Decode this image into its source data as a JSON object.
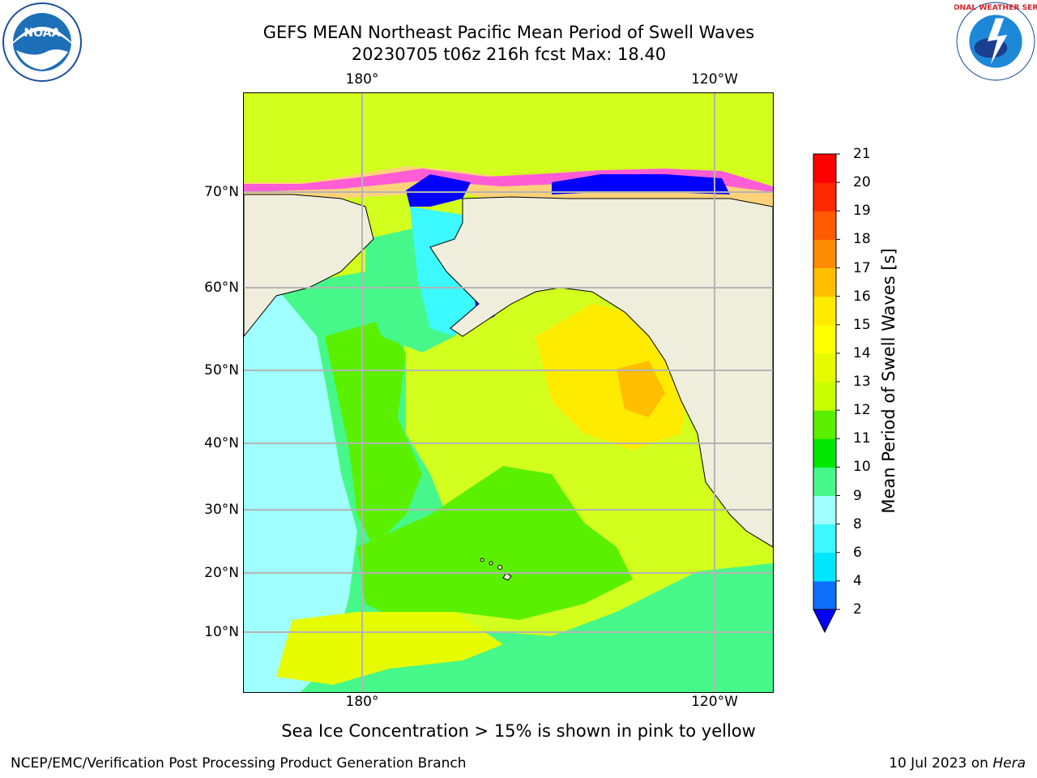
{
  "title_line1": "GEFS MEAN Northeast Pacific Mean Period of Swell Waves",
  "title_line2": "20230705 t06z 216h fcst   Max: 18.40",
  "lon_labels": [
    "180°",
    "120°W"
  ],
  "lat_labels": [
    "70°N",
    "60°N",
    "50°N",
    "40°N",
    "30°N",
    "20°N",
    "10°N"
  ],
  "colorbar": {
    "label": "Mean Period of Swell Waves [s]",
    "ticks": [
      "2",
      "4",
      "6",
      "8",
      "9",
      "10",
      "11",
      "12",
      "13",
      "14",
      "15",
      "16",
      "17",
      "18",
      "19",
      "20",
      "21"
    ],
    "colors": [
      "#0d6ffc",
      "#00e6ff",
      "#3cf8ff",
      "#a0ffff",
      "#46f88a",
      "#00e800",
      "#5af000",
      "#c8ff00",
      "#e6fa00",
      "#ffff00",
      "#ffeb00",
      "#ffbe00",
      "#ff8c00",
      "#ff5a00",
      "#ff2800",
      "#ff0000"
    ],
    "extend_color": "#0000ff"
  },
  "sea_ice_note": "Sea Ice Concentration > 15% is shown in pink to yellow",
  "footer_left": "NCEP/EMC/Verification Post Processing Product Generation Branch",
  "footer_right_prefix": "10 Jul 2023 on ",
  "footer_right_machine": "Hera",
  "logos": {
    "left": "NOAA",
    "right_text": "NATIONAL WEATHER SERVICE"
  },
  "map_colors": {
    "land": "#efeedc",
    "ocean_main": "#d2ff1e",
    "grid": "#b4b4b4"
  }
}
